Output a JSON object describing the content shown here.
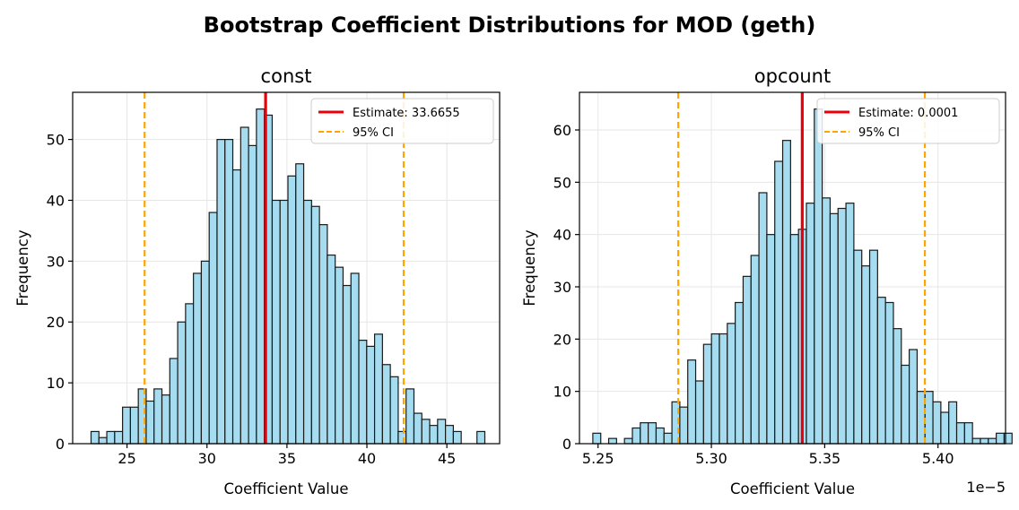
{
  "figure": {
    "suptitle": "Bootstrap Coefficient Distributions for MOD (geth)"
  },
  "colors": {
    "bar_fill": "#a6dcef",
    "bar_edge": "#1a1a1a",
    "estimate": "#e8000b",
    "ci": "#ffa500",
    "grid": "#e6e6e6"
  },
  "chart_data": [
    {
      "type": "bar",
      "title": "const",
      "xlabel": "Coefficient Value",
      "ylabel": "Frequency",
      "xlim": [
        21.6,
        48.3
      ],
      "ylim": [
        0,
        57.75
      ],
      "xticks": [
        25,
        30,
        35,
        40,
        45
      ],
      "xtick_labels": [
        "25",
        "30",
        "35",
        "40",
        "45"
      ],
      "yticks": [
        0,
        10,
        20,
        30,
        40,
        50
      ],
      "ytick_labels": [
        "0",
        "10",
        "20",
        "30",
        "40",
        "50"
      ],
      "offset_label": "",
      "bin_start": 22.75,
      "bin_width": 0.4925,
      "counts": [
        2,
        1,
        2,
        2,
        6,
        6,
        9,
        7,
        9,
        8,
        14,
        20,
        23,
        28,
        30,
        38,
        50,
        50,
        45,
        52,
        49,
        55,
        54,
        40,
        40,
        44,
        46,
        40,
        39,
        36,
        31,
        29,
        26,
        28,
        17,
        16,
        18,
        13,
        11,
        2,
        9,
        5,
        4,
        3,
        4,
        3,
        2,
        0,
        0,
        2
      ],
      "estimate": 33.6655,
      "ci": [
        26.1,
        42.3
      ],
      "legend": {
        "estimate_label": "Estimate: 33.6655",
        "ci_label": "95% CI",
        "location": "upper right"
      }
    },
    {
      "type": "bar",
      "title": "opcount",
      "xlabel": "Coefficient Value",
      "ylabel": "Frequency",
      "xlim": [
        5.2418,
        5.4298
      ],
      "ylim": [
        0,
        67.2
      ],
      "xticks": [
        5.25,
        5.3,
        5.35,
        5.4
      ],
      "xtick_labels": [
        "5.25",
        "5.30",
        "5.35",
        "5.40"
      ],
      "yticks": [
        0,
        10,
        20,
        30,
        40,
        50,
        60
      ],
      "ytick_labels": [
        "0",
        "10",
        "20",
        "30",
        "40",
        "50",
        "60"
      ],
      "offset_label": "1e−5",
      "bin_start": 5.2477,
      "bin_width": 0.00349,
      "counts": [
        2,
        0,
        1,
        0,
        1,
        3,
        4,
        4,
        3,
        2,
        8,
        7,
        16,
        12,
        19,
        21,
        21,
        23,
        27,
        32,
        36,
        48,
        40,
        54,
        58,
        40,
        41,
        46,
        64,
        47,
        44,
        45,
        46,
        37,
        34,
        37,
        28,
        27,
        22,
        15,
        18,
        10,
        10,
        8,
        6,
        8,
        4,
        4,
        1,
        1,
        1,
        2,
        2
      ],
      "estimate": 5.3401,
      "ci": [
        5.2854,
        5.3942
      ],
      "legend": {
        "estimate_label": "Estimate: 0.0001",
        "ci_label": "95% CI",
        "location": "upper right"
      }
    }
  ]
}
